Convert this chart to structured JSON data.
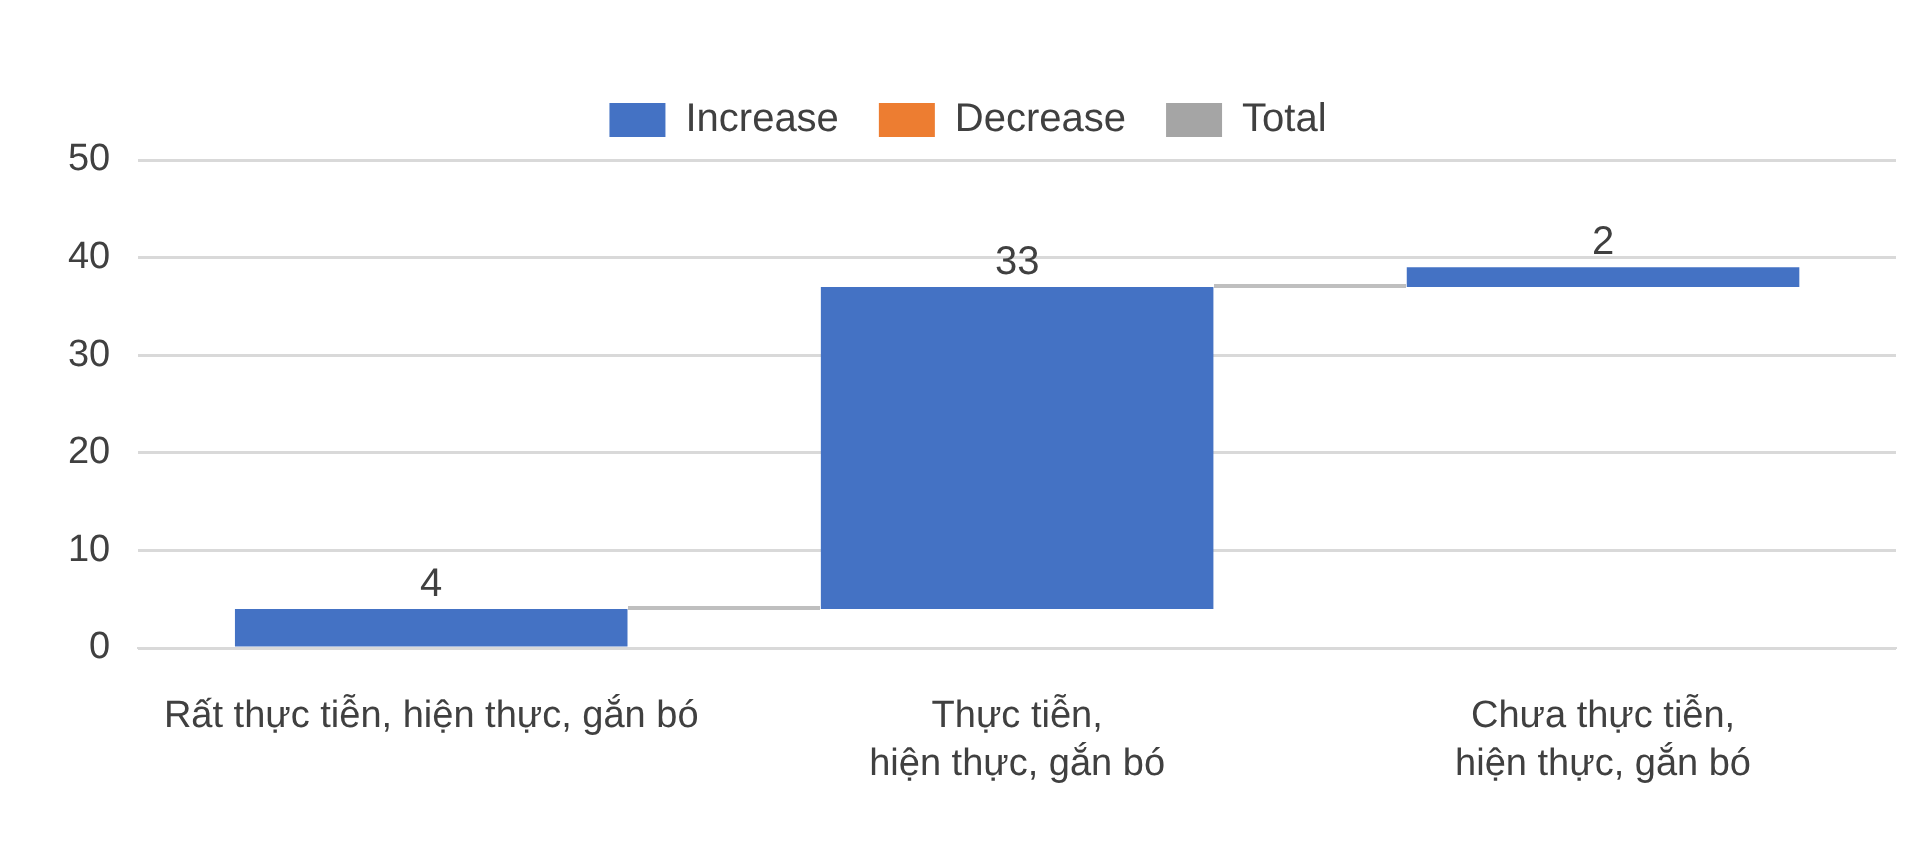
{
  "chart_data": {
    "type": "bar",
    "categories": [
      "Rất thực tiễn, hiện thực, gắn bó",
      "Thực tiễn,\nhiện thực, gắn bó",
      "Chưa thực tiễn,\nhiện thực, gắn bó"
    ],
    "series": [
      {
        "name": "Increase",
        "color": "#4472c4",
        "values": [
          4,
          33,
          2
        ],
        "base": [
          0,
          4,
          37
        ]
      },
      {
        "name": "Decrease",
        "color": "#ed7d31",
        "values": [
          null,
          null,
          null
        ]
      },
      {
        "name": "Total",
        "color": "#a5a5a5",
        "values": [
          null,
          null,
          null
        ]
      }
    ],
    "ylim": [
      0,
      50
    ],
    "yticks": [
      0,
      10,
      20,
      30,
      40,
      50
    ],
    "grid": "y",
    "legend": "top",
    "data_labels": true
  }
}
